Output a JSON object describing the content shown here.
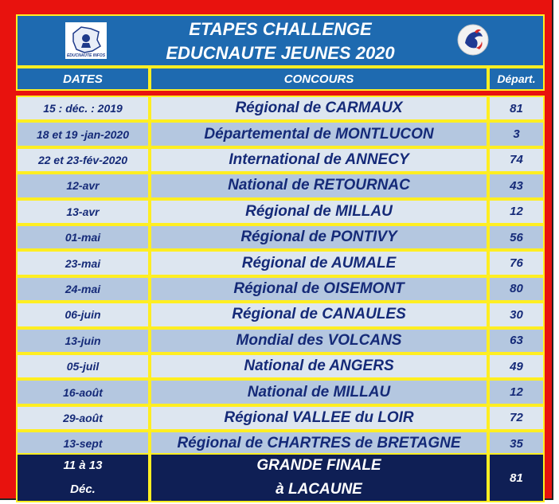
{
  "title": {
    "line1": "ETAPES CHALLENGE",
    "line2": "EDUCNAUTE JEUNES 2020"
  },
  "logo_left": {
    "caption": "EDUCNAUTE INFOS"
  },
  "headers": {
    "dates": "DATES",
    "concours": "CONCOURS",
    "depart": "Départ."
  },
  "rows": [
    {
      "date": "15 : déc. : 2019",
      "concours": "Régional de CARMAUX",
      "depart": "81"
    },
    {
      "date": "18 et 19 -jan-2020",
      "concours": "Départemental de MONTLUCON",
      "depart": "3"
    },
    {
      "date": "22 et 23-fév-2020",
      "concours": "International de ANNECY",
      "depart": "74"
    },
    {
      "date": "12-avr",
      "concours": "National de RETOURNAC",
      "depart": "43"
    },
    {
      "date": "13-avr",
      "concours": "Régional de MILLAU",
      "depart": "12"
    },
    {
      "date": "01-mai",
      "concours": "Régional de PONTIVY",
      "depart": "56"
    },
    {
      "date": "23-mai",
      "concours": "Régional de AUMALE",
      "depart": "76"
    },
    {
      "date": "24-mai",
      "concours": "Régional de OISEMONT",
      "depart": "80"
    },
    {
      "date": "06-juin",
      "concours": "Régional de CANAULES",
      "depart": "30"
    },
    {
      "date": "13-juin",
      "concours": "Mondial des VOLCANS",
      "depart": "63"
    },
    {
      "date": "05-juil",
      "concours": "National de ANGERS",
      "depart": "49"
    },
    {
      "date": "16-août",
      "concours": "National de MILLAU",
      "depart": "12"
    },
    {
      "date": "29-août",
      "concours": "Régional VALLEE du LOIR",
      "depart": "72"
    },
    {
      "date": "13-sept",
      "concours": "Régional de CHARTRES de BRETAGNE",
      "depart": "35"
    }
  ],
  "final": {
    "date_line1": "11 à 13",
    "date_line2": "Déc.",
    "concours_line1": "GRANDE FINALE",
    "concours_line2": "à LACAUNE",
    "depart": "81"
  },
  "colors": {
    "background": "#e8120e",
    "header": "#1e6ab0",
    "row_light": "#dde6f0",
    "row_dark": "#b4c7e0",
    "final": "#0f1f55",
    "border": "#ffee22",
    "text": "#152a78"
  }
}
